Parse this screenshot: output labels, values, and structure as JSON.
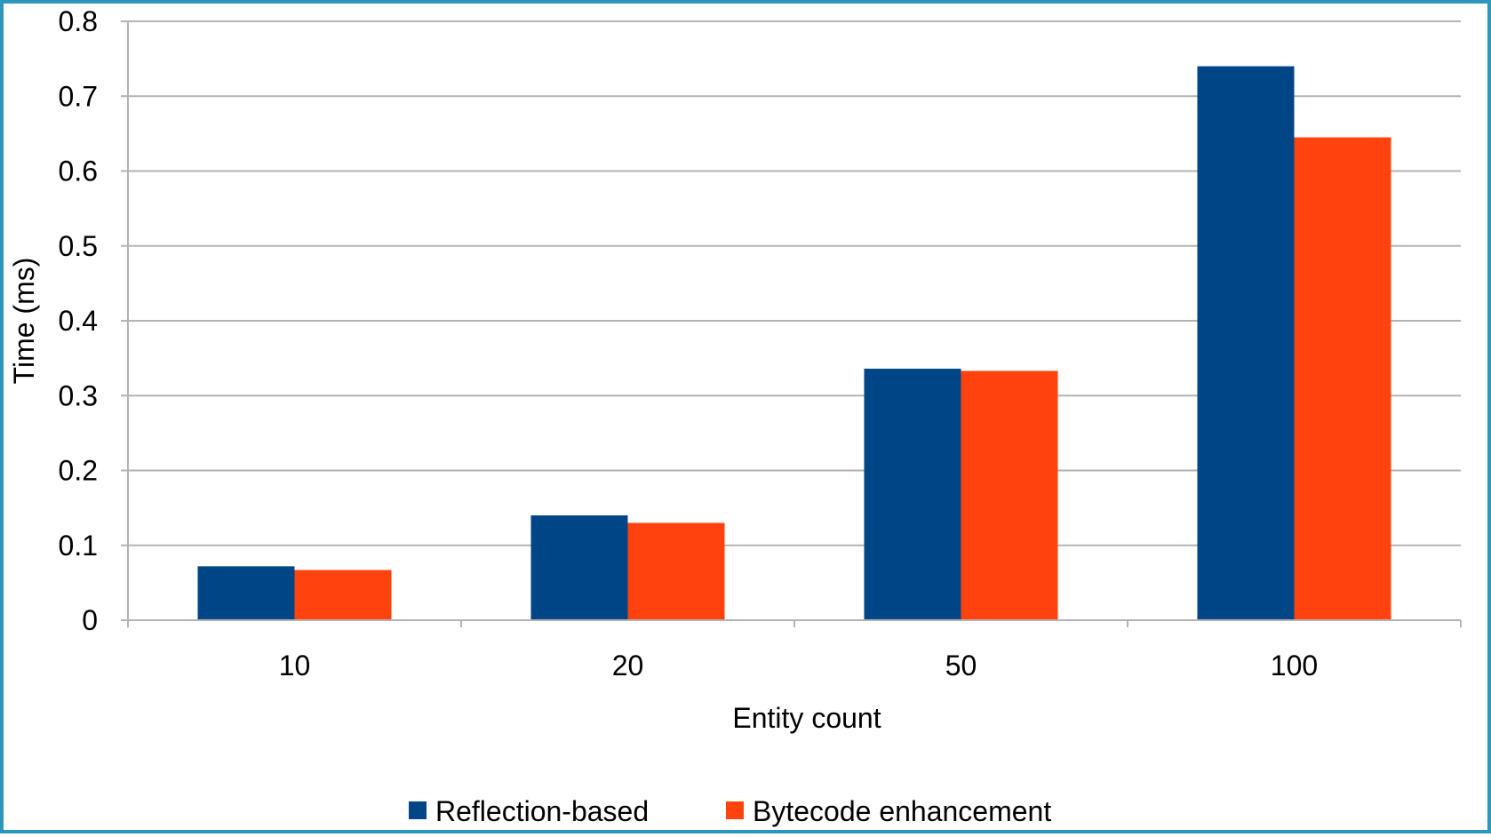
{
  "chart_data": {
    "type": "bar",
    "title": "",
    "xlabel": "Entity count",
    "ylabel": "Time (ms)",
    "categories": [
      "10",
      "20",
      "50",
      "100"
    ],
    "series": [
      {
        "name": "Reflection-based",
        "color": "#004586",
        "values": [
          0.072,
          0.14,
          0.336,
          0.74
        ]
      },
      {
        "name": "Bytecode enhancement",
        "color": "#ff420e",
        "values": [
          0.067,
          0.13,
          0.333,
          0.645
        ]
      }
    ],
    "ylim": [
      0,
      0.8
    ],
    "yticks": [
      "0",
      "0.1",
      "0.2",
      "0.3",
      "0.4",
      "0.5",
      "0.6",
      "0.7",
      "0.8"
    ],
    "grid": true,
    "legend_position": "bottom"
  }
}
